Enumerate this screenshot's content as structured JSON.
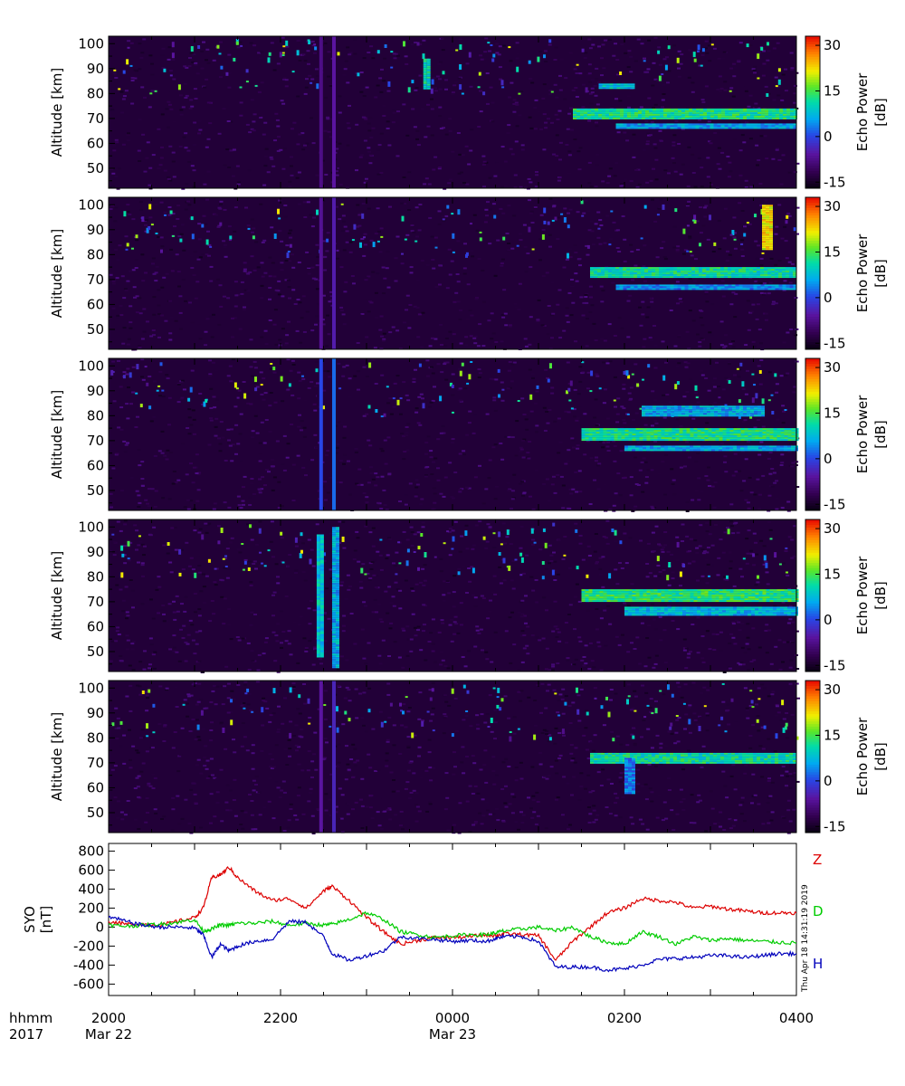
{
  "chart_data": [
    {
      "type": "heatmap",
      "panel": 1,
      "ylabel": "Altitude [km]",
      "yticks": [
        50,
        60,
        70,
        80,
        90,
        100
      ],
      "ylim": [
        42,
        103
      ],
      "colorbar": {
        "label_line1": "Echo Power",
        "label_line2": "[dB]",
        "ticks": [
          -15,
          0,
          15,
          30
        ],
        "range": [
          -17,
          33
        ]
      },
      "features": [
        {
          "t0": 5.4,
          "t1": 8.0,
          "alt0": 70,
          "alt1": 74,
          "db": 12
        },
        {
          "t0": 5.9,
          "t1": 8.0,
          "alt0": 66,
          "alt1": 68,
          "db": 5
        },
        {
          "t0": 3.66,
          "t1": 3.72,
          "alt0": 82,
          "alt1": 94,
          "db": 10
        },
        {
          "t0": 5.7,
          "t1": 6.1,
          "alt0": 82,
          "alt1": 84,
          "db": 8
        }
      ],
      "vlines": [
        {
          "t": 2.45,
          "db": -8
        },
        {
          "t": 2.6,
          "db": -6
        }
      ]
    },
    {
      "type": "heatmap",
      "panel": 2,
      "ylabel": "Altitude [km]",
      "yticks": [
        50,
        60,
        70,
        80,
        90,
        100
      ],
      "ylim": [
        42,
        103
      ],
      "colorbar": {
        "label_line1": "Echo Power",
        "label_line2": "[dB]",
        "ticks": [
          -15,
          0,
          15,
          30
        ],
        "range": [
          -17,
          33
        ]
      },
      "features": [
        {
          "t0": 5.6,
          "t1": 8.0,
          "alt0": 71,
          "alt1": 75,
          "db": 11
        },
        {
          "t0": 5.9,
          "t1": 8.0,
          "alt0": 66,
          "alt1": 68,
          "db": 4
        },
        {
          "t0": 7.6,
          "t1": 7.7,
          "alt0": 82,
          "alt1": 100,
          "db": 22
        }
      ],
      "vlines": [
        {
          "t": 2.45,
          "db": -7
        },
        {
          "t": 2.6,
          "db": -5
        }
      ]
    },
    {
      "type": "heatmap",
      "panel": 3,
      "ylabel": "Altitude [km]",
      "yticks": [
        50,
        60,
        70,
        80,
        90,
        100
      ],
      "ylim": [
        42,
        103
      ],
      "colorbar": {
        "label_line1": "Echo Power",
        "label_line2": "[dB]",
        "ticks": [
          -15,
          0,
          15,
          30
        ],
        "range": [
          -17,
          33
        ]
      },
      "features": [
        {
          "t0": 5.5,
          "t1": 8.0,
          "alt0": 70,
          "alt1": 75,
          "db": 12
        },
        {
          "t0": 6.0,
          "t1": 8.0,
          "alt0": 66,
          "alt1": 68,
          "db": 6
        },
        {
          "t0": 6.2,
          "t1": 7.6,
          "alt0": 80,
          "alt1": 84,
          "db": 6
        }
      ],
      "vlines": [
        {
          "t": 2.45,
          "db": 0
        },
        {
          "t": 2.6,
          "db": 2
        }
      ]
    },
    {
      "type": "heatmap",
      "panel": 4,
      "ylabel": "Altitude [km]",
      "yticks": [
        50,
        60,
        70,
        80,
        90,
        100
      ],
      "ylim": [
        42,
        103
      ],
      "colorbar": {
        "label_line1": "Echo Power",
        "label_line2": "[dB]",
        "ticks": [
          -15,
          0,
          15,
          30
        ],
        "range": [
          -17,
          33
        ]
      },
      "features": [
        {
          "t0": 5.5,
          "t1": 8.0,
          "alt0": 70,
          "alt1": 75,
          "db": 13
        },
        {
          "t0": 6.0,
          "t1": 8.0,
          "alt0": 65,
          "alt1": 68,
          "db": 7
        },
        {
          "t0": 2.42,
          "t1": 2.5,
          "alt0": 48,
          "alt1": 97,
          "db": 8
        },
        {
          "t0": 2.6,
          "t1": 2.66,
          "alt0": 44,
          "alt1": 100,
          "db": 6
        }
      ],
      "vlines": []
    },
    {
      "type": "heatmap",
      "panel": 5,
      "ylabel": "Altitude [km]",
      "yticks": [
        50,
        60,
        70,
        80,
        90,
        100
      ],
      "ylim": [
        42,
        103
      ],
      "colorbar": {
        "label_line1": "Echo Power",
        "label_line2": "[dB]",
        "ticks": [
          -15,
          0,
          15,
          30
        ],
        "range": [
          -17,
          33
        ]
      },
      "features": [
        {
          "t0": 5.6,
          "t1": 8.0,
          "alt0": 70,
          "alt1": 74,
          "db": 11
        },
        {
          "t0": 6.0,
          "t1": 6.1,
          "alt0": 58,
          "alt1": 72,
          "db": 3
        }
      ],
      "vlines": [
        {
          "t": 2.45,
          "db": -6
        },
        {
          "t": 2.6,
          "db": -4
        }
      ]
    },
    {
      "type": "line",
      "ylabel_line1": "SYO",
      "ylabel_line2": "[nT]",
      "yticks": [
        -600,
        -400,
        -200,
        0,
        200,
        400,
        600,
        800
      ],
      "ylim": [
        -720,
        880
      ],
      "x_hours": [
        0,
        0.2,
        0.4,
        0.6,
        0.8,
        1.0,
        1.1,
        1.2,
        1.3,
        1.4,
        1.5,
        1.7,
        1.9,
        2.1,
        2.3,
        2.5,
        2.6,
        2.8,
        3.0,
        3.2,
        3.4,
        3.6,
        3.8,
        4.0,
        4.2,
        4.4,
        4.5,
        4.6,
        4.8,
        5.0,
        5.2,
        5.4,
        5.6,
        5.8,
        6.0,
        6.2,
        6.4,
        6.6,
        6.8,
        7.0,
        7.2,
        7.4,
        7.6,
        7.8,
        8.0
      ],
      "series": [
        {
          "name": "Z",
          "color": "#dd0000",
          "values": [
            60,
            30,
            30,
            20,
            60,
            100,
            200,
            520,
            550,
            630,
            520,
            380,
            280,
            300,
            200,
            380,
            430,
            280,
            100,
            -50,
            -180,
            -140,
            -110,
            -110,
            -100,
            -80,
            -90,
            -70,
            -80,
            -90,
            -350,
            -150,
            0,
            150,
            200,
            300,
            280,
            260,
            200,
            220,
            190,
            170,
            150,
            150,
            150
          ]
        },
        {
          "name": "D",
          "color": "#00cc00",
          "values": [
            20,
            10,
            20,
            30,
            50,
            80,
            -40,
            -20,
            20,
            20,
            40,
            40,
            60,
            20,
            40,
            20,
            30,
            80,
            150,
            80,
            -50,
            -80,
            -110,
            -90,
            -80,
            -80,
            -60,
            -40,
            -20,
            0,
            -40,
            0,
            -100,
            -160,
            -180,
            -50,
            -100,
            -180,
            -100,
            -140,
            -120,
            -140,
            -150,
            -160,
            -170
          ]
        },
        {
          "name": "H",
          "color": "#0000bb",
          "values": [
            110,
            60,
            20,
            0,
            0,
            -10,
            -80,
            -320,
            -180,
            -250,
            -200,
            -150,
            -130,
            60,
            50,
            -100,
            -280,
            -350,
            -300,
            -250,
            -100,
            -120,
            -130,
            -150,
            -140,
            -150,
            -120,
            -100,
            -100,
            -150,
            -420,
            -420,
            -420,
            -450,
            -440,
            -400,
            -340,
            -330,
            -320,
            -300,
            -300,
            -320,
            -300,
            -280,
            -280
          ]
        }
      ]
    }
  ],
  "xaxis": {
    "hours": [
      0,
      2,
      4,
      6,
      8
    ],
    "labels": [
      "2000",
      "2200",
      "0000",
      "0200",
      "0400"
    ],
    "dates": [
      {
        "hours": 0,
        "text": "Mar 22"
      },
      {
        "hours": 4,
        "text": "Mar 23"
      }
    ],
    "row_label_top": "hhmm",
    "row_label_bottom": "2017"
  },
  "timestamp": "Thu Apr 18 14:31:19 2019"
}
